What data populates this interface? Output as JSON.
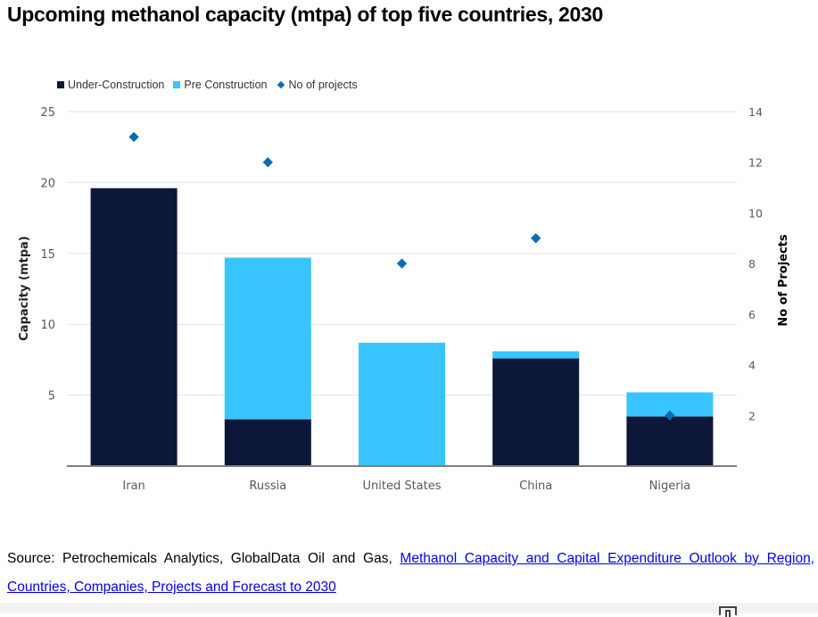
{
  "title": "Upcoming methanol capacity (mtpa) of top five countries, 2030",
  "colors": {
    "under_construction": "#0c1739",
    "pre_construction": "#38c4fe",
    "projects": "#0a6bb3",
    "grid": "#e3e3e3",
    "axis": "#7f7f7f",
    "tick_text": "#595959"
  },
  "chart_data": {
    "type": "bar",
    "stacked": true,
    "title": "Upcoming methanol capacity (mtpa) of top five countries, 2030",
    "categories": [
      "Iran",
      "Russia",
      "United States",
      "China",
      "Nigeria"
    ],
    "series": [
      {
        "name": "Under-Construction",
        "axis": "left",
        "type": "bar",
        "values": [
          19.6,
          3.3,
          0,
          7.6,
          3.5
        ]
      },
      {
        "name": "Pre Construction",
        "axis": "left",
        "type": "bar",
        "values": [
          0,
          11.4,
          8.7,
          0.5,
          1.7
        ]
      },
      {
        "name": "No of projects",
        "axis": "right",
        "type": "scatter",
        "marker": "diamond",
        "values": [
          13,
          12,
          8,
          9,
          2
        ]
      }
    ],
    "ylabel": "Capacity (mtpa)",
    "y2label": "No of Projects",
    "xlabel": "",
    "ylim": [
      0,
      25
    ],
    "y2lim": [
      0,
      14
    ],
    "yticks": [
      5,
      10,
      15,
      20,
      25
    ],
    "y2ticks": [
      2,
      4,
      6,
      8,
      10,
      12,
      14
    ],
    "grid": true,
    "legend_position": "top-left"
  },
  "legend": [
    {
      "label": "Under-Construction",
      "marker": "square"
    },
    {
      "label": "Pre Construction",
      "marker": "square"
    },
    {
      "label": "No of projects",
      "marker": "diamond"
    }
  ],
  "source": {
    "prefix": "Source: Petrochemicals Analytics, GlobalData Oil and Gas, ",
    "link_text": "Methanol Capacity and Capital Expenditure Outlook by Region, Countries, Companies, Projects and Forecast to 2030"
  }
}
